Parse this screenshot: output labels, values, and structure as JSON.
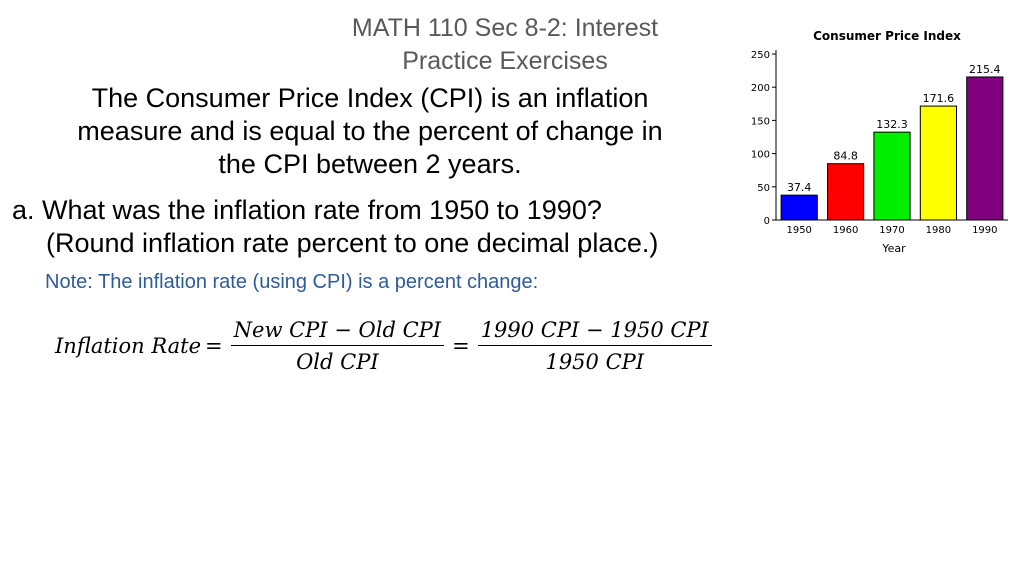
{
  "slide": {
    "title_line1": "MATH 110 Sec 8-2: Interest",
    "title_line2": "Practice Exercises",
    "intro_line1": "The Consumer Price Index (CPI) is an inflation",
    "intro_line2": "measure and is equal to the percent of change in",
    "intro_line3": "the CPI between 2 years.",
    "question_line1": "a. What was the inflation rate from 1950 to 1990?",
    "question_line2": "(Round inflation rate percent to one decimal place.)",
    "note": "Note: The inflation rate (using CPI) is a percent change:"
  },
  "formula": {
    "lhs": "Inflation Rate",
    "eq": "=",
    "frac1_num": "New CPI − Old CPI",
    "frac1_den": "Old CPI",
    "frac2_num": "1990 CPI − 1950 CPI",
    "frac2_den": "1950 CPI"
  },
  "chart_data": {
    "type": "bar",
    "title": "Consumer Price Index",
    "xlabel": "Year",
    "ylabel": "",
    "categories": [
      "1950",
      "1960",
      "1970",
      "1980",
      "1990"
    ],
    "values": [
      37.4,
      84.8,
      132.3,
      171.6,
      215.4
    ],
    "data_labels": [
      "37.4",
      "84.8",
      "132.3",
      "171.6",
      "215.4"
    ],
    "colors": [
      "#0000ff",
      "#ff0000",
      "#00ee00",
      "#ffff00",
      "#800080"
    ],
    "ylim": [
      0,
      250
    ],
    "yticks": [
      0,
      50,
      100,
      150,
      200,
      250
    ],
    "grid": false
  }
}
